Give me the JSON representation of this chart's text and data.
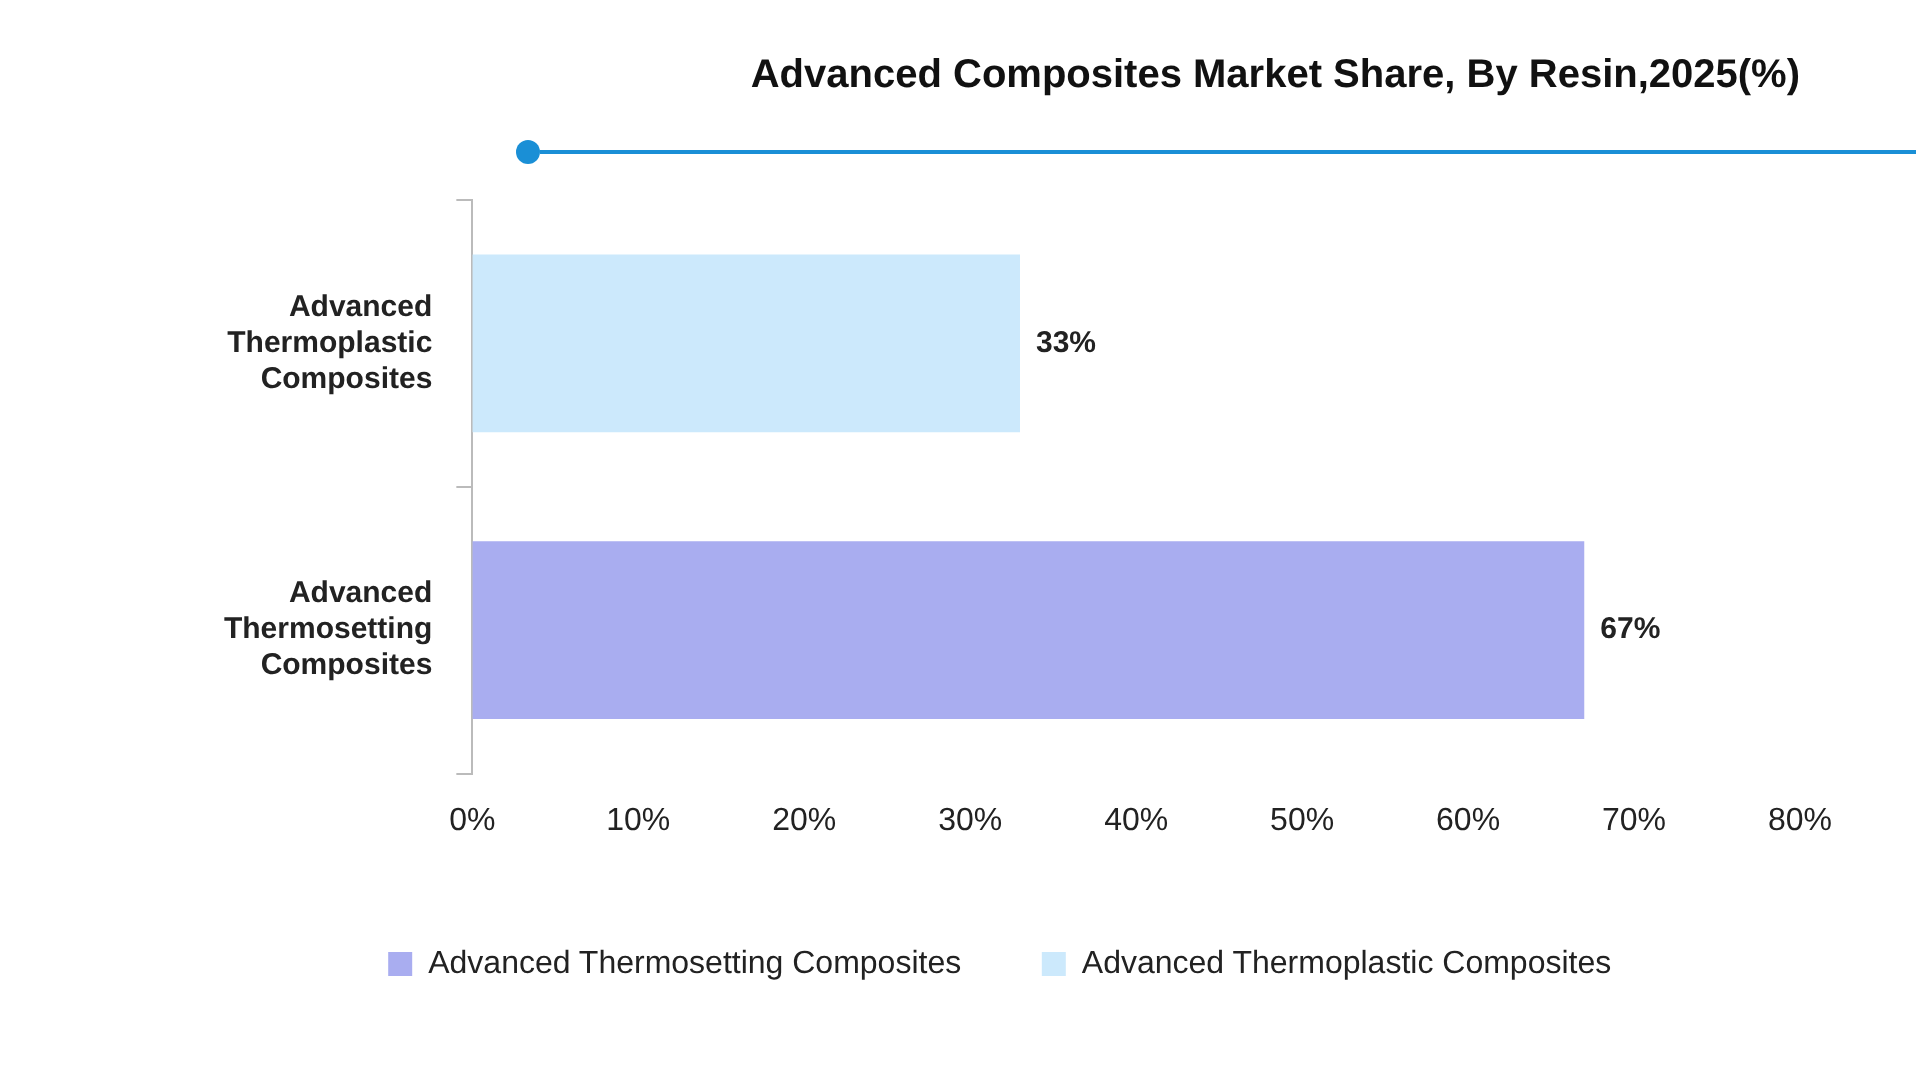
{
  "chart_data": {
    "type": "bar",
    "orientation": "horizontal",
    "title": "Advanced Composites Market Share, By Resin,2025(%)",
    "categories": [
      "Advanced Thermoplastic Composites",
      "Advanced Thermosetting Composites"
    ],
    "series": [
      {
        "name": "Advanced Thermosetting Composites",
        "color": "#a9adf0",
        "values": [
          null,
          67
        ],
        "value_labels": [
          null,
          "67%"
        ]
      },
      {
        "name": "Advanced Thermoplastic Composites",
        "color": "#cce9fc",
        "values": [
          33,
          null
        ],
        "value_labels": [
          "33%",
          null
        ]
      }
    ],
    "xlim": [
      0,
      80
    ],
    "xticks": [
      {
        "value": 0,
        "label": "0%"
      },
      {
        "value": 10,
        "label": "10%"
      },
      {
        "value": 20,
        "label": "20%"
      },
      {
        "value": 30,
        "label": "30%"
      },
      {
        "value": 40,
        "label": "40%"
      },
      {
        "value": 50,
        "label": "50%"
      },
      {
        "value": 60,
        "label": "60%"
      },
      {
        "value": 70,
        "label": "70%"
      },
      {
        "value": 80,
        "label": "80%"
      }
    ],
    "grid": false,
    "legend": "bottom"
  }
}
